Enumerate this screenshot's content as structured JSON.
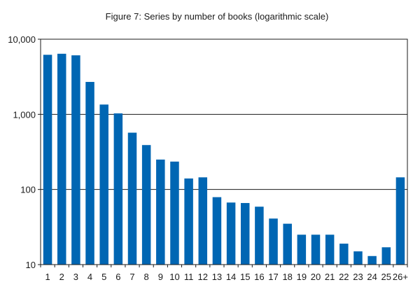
{
  "chart_data": {
    "type": "bar",
    "title": "Figure 7: Series by number of books (logarithmic scale)",
    "xlabel": "",
    "ylabel": "",
    "y_scale": "log",
    "ylim": [
      10,
      10000
    ],
    "y_ticks": [
      10,
      100,
      1000,
      10000
    ],
    "y_tick_labels": [
      "10",
      "100",
      "1,000",
      "10,000"
    ],
    "grid": true,
    "bar_color": "#0066b3",
    "categories": [
      "1",
      "2",
      "3",
      "4",
      "5",
      "6",
      "7",
      "8",
      "9",
      "10",
      "11",
      "12",
      "13",
      "14",
      "15",
      "16",
      "17",
      "18",
      "19",
      "20",
      "21",
      "22",
      "23",
      "24",
      "25",
      "26+"
    ],
    "values": [
      6200,
      6400,
      6100,
      2700,
      1350,
      1030,
      570,
      390,
      250,
      235,
      140,
      145,
      79,
      67,
      66,
      59,
      41,
      35,
      25,
      25,
      25,
      19,
      15,
      13,
      17,
      145
    ]
  }
}
